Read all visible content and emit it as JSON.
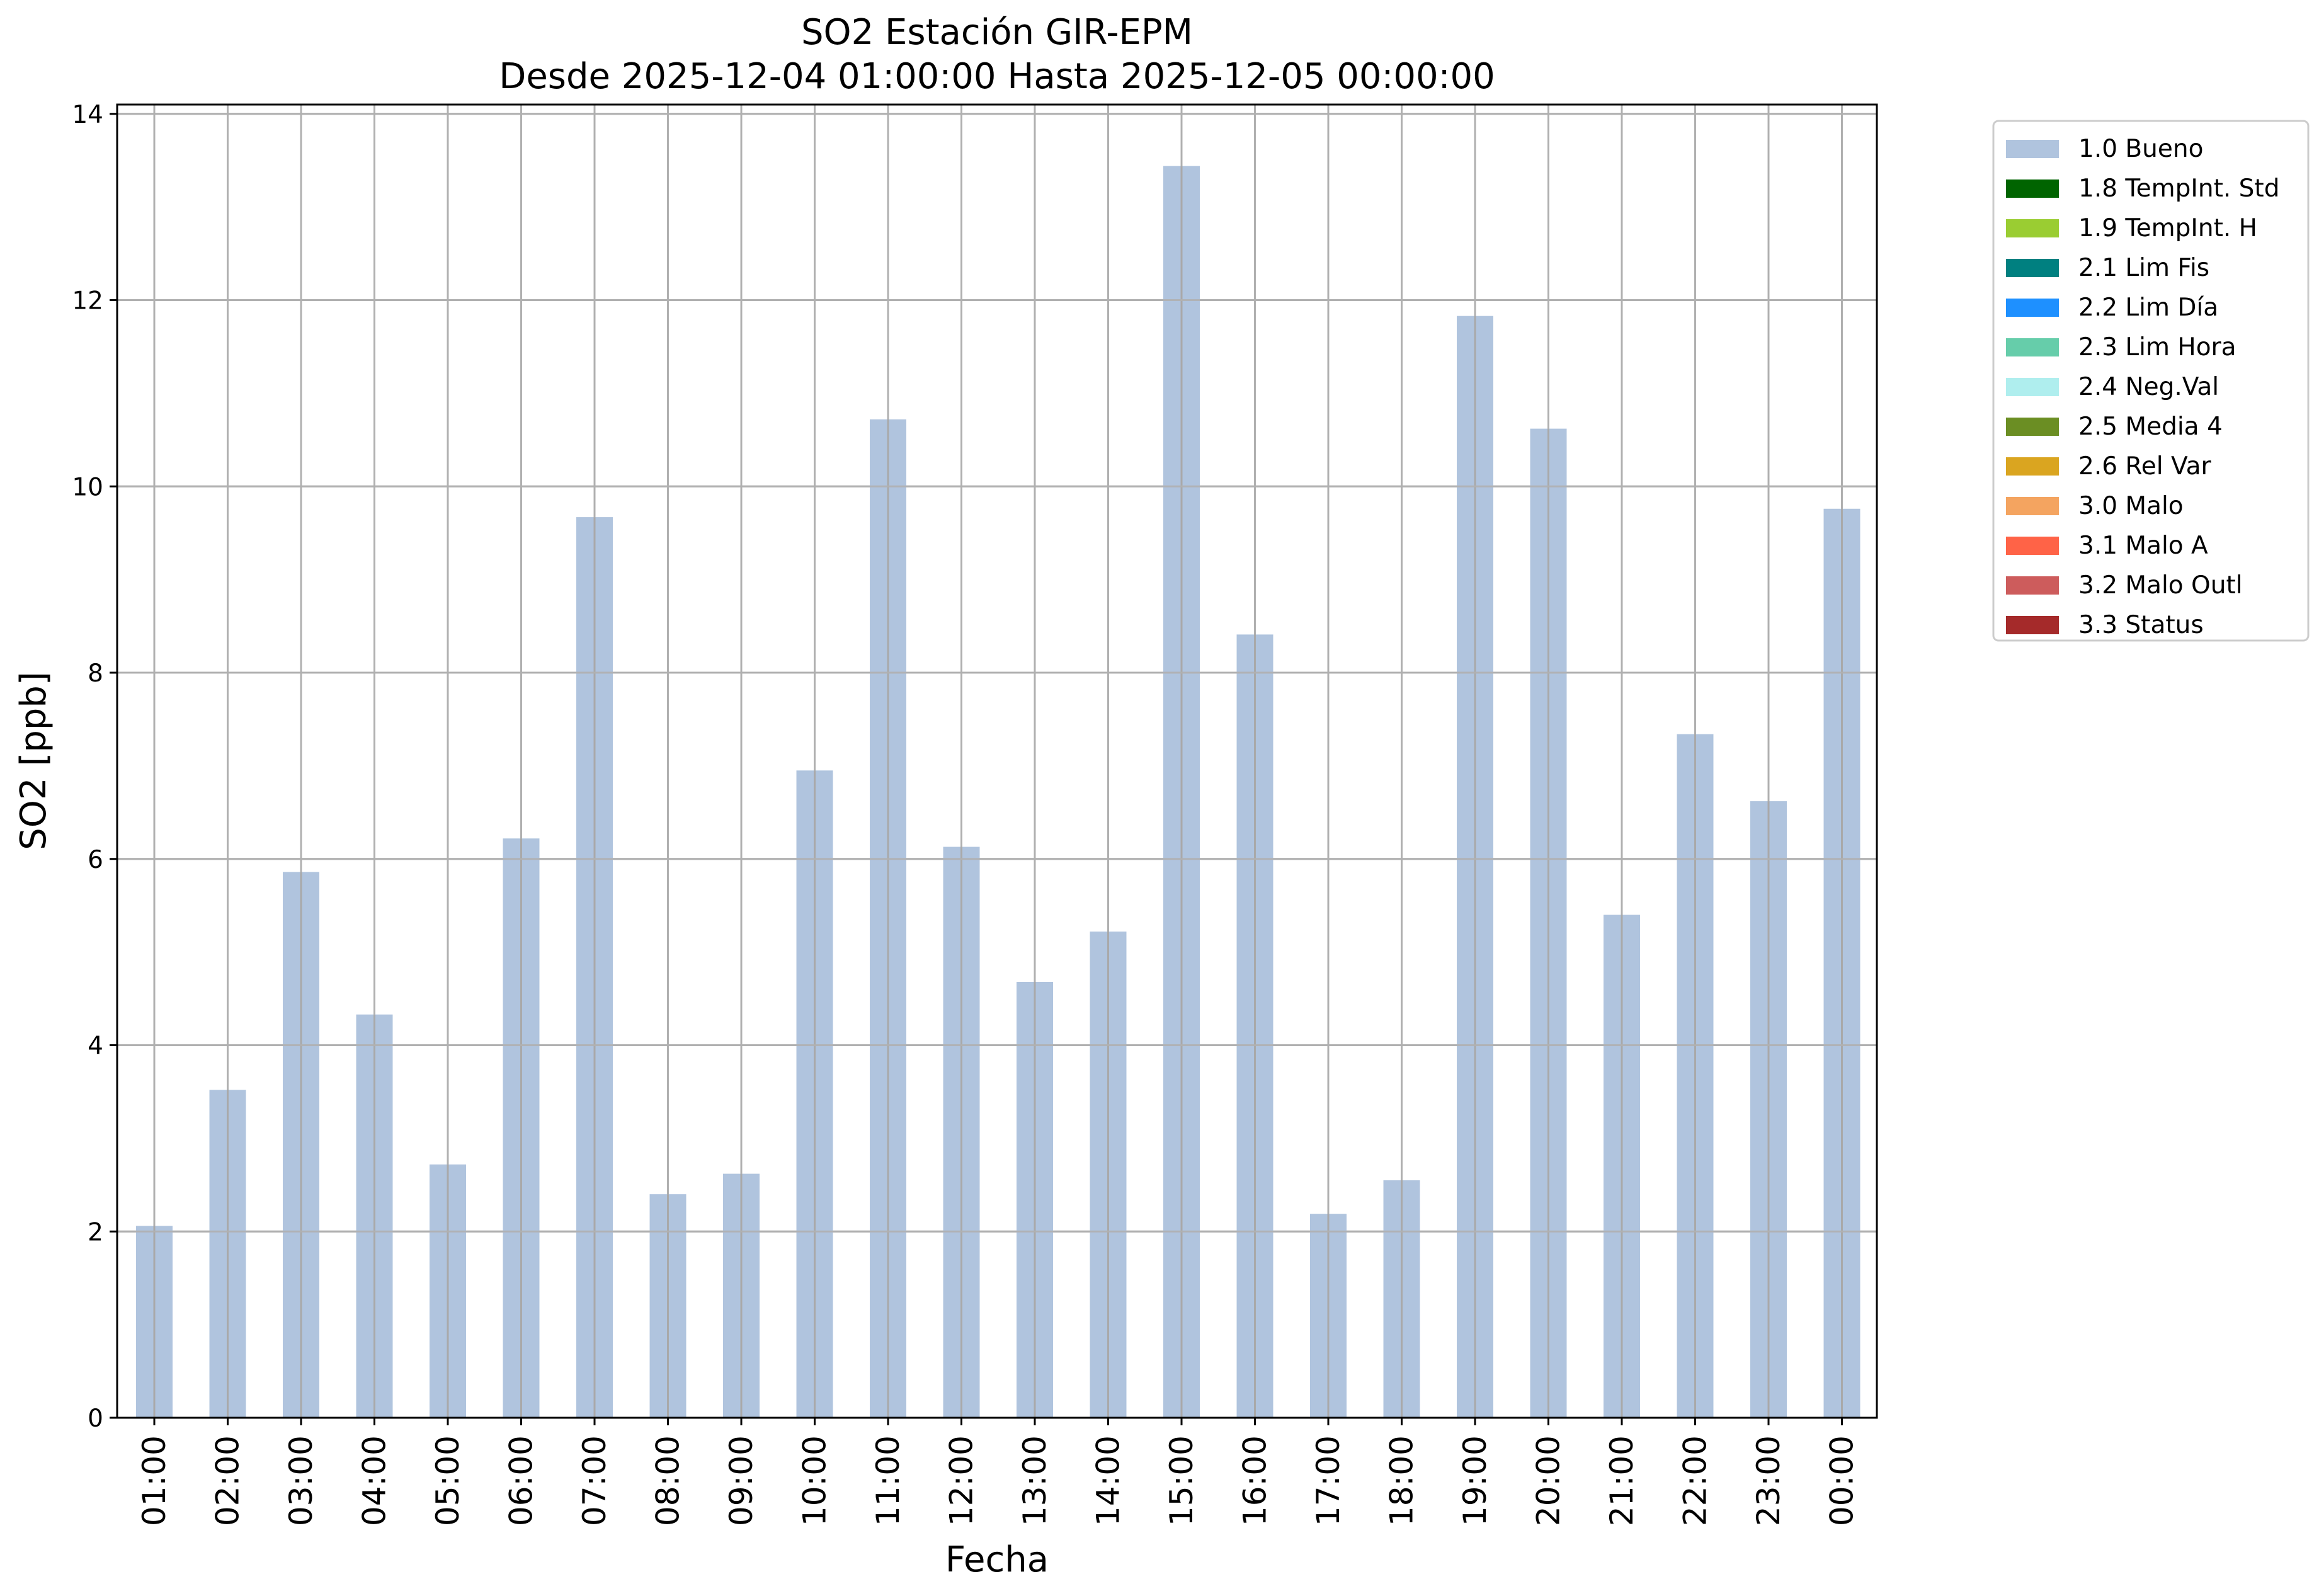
{
  "chart_data": {
    "type": "bar",
    "title": "SO2 Estación GIR-EPM",
    "subtitle": "Desde 2025-12-04 01:00:00 Hasta 2025-12-05 00:00:00",
    "xlabel": "Fecha",
    "ylabel": "SO2 [ppb]",
    "ylim": [
      0,
      14.1
    ],
    "yticks": [
      0,
      2,
      4,
      6,
      8,
      10,
      12,
      14
    ],
    "grid": true,
    "legend_position": "outside-top-right",
    "categories": [
      "01:00",
      "02:00",
      "03:00",
      "04:00",
      "05:00",
      "06:00",
      "07:00",
      "08:00",
      "09:00",
      "10:00",
      "11:00",
      "12:00",
      "13:00",
      "14:00",
      "15:00",
      "16:00",
      "17:00",
      "18:00",
      "19:00",
      "20:00",
      "21:00",
      "22:00",
      "23:00",
      "00:00"
    ],
    "series": [
      {
        "name": "1.0 Bueno",
        "color": "#b0c4de",
        "values": [
          2.06,
          3.52,
          5.86,
          4.33,
          2.72,
          6.22,
          9.67,
          2.4,
          2.62,
          6.95,
          10.72,
          6.13,
          4.68,
          5.22,
          13.44,
          8.41,
          2.19,
          2.55,
          11.83,
          10.62,
          5.4,
          7.34,
          6.62,
          9.76
        ]
      }
    ],
    "legend": [
      {
        "label": "1.0 Bueno",
        "color": "#b0c4de"
      },
      {
        "label": "1.8 TempInt. Std",
        "color": "#006400"
      },
      {
        "label": "1.9 TempInt. H",
        "color": "#9acd32"
      },
      {
        "label": "2.1 Lim Fis",
        "color": "#008080"
      },
      {
        "label": "2.2 Lim Día",
        "color": "#1e90ff"
      },
      {
        "label": "2.3 Lim Hora",
        "color": "#66cdaa"
      },
      {
        "label": "2.4 Neg.Val",
        "color": "#afeeee"
      },
      {
        "label": "2.5 Media 4",
        "color": "#6b8e23"
      },
      {
        "label": "2.6 Rel Var",
        "color": "#daa520"
      },
      {
        "label": "3.0 Malo",
        "color": "#f4a460"
      },
      {
        "label": "3.1 Malo A",
        "color": "#ff6347"
      },
      {
        "label": "3.2 Malo Outl",
        "color": "#cd5c5c"
      },
      {
        "label": "3.3 Status",
        "color": "#a52a2a"
      }
    ]
  }
}
